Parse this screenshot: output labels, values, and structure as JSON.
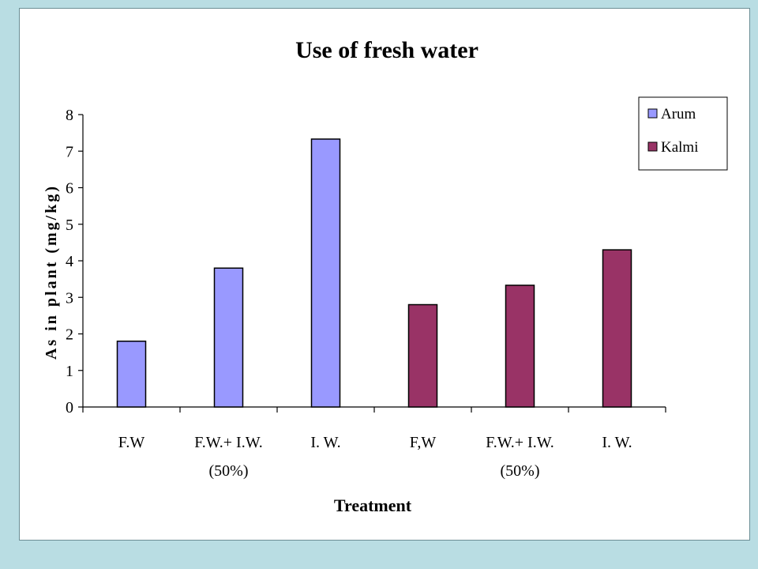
{
  "chart_data": {
    "type": "bar",
    "title": "Use of fresh water",
    "xlabel": "Treatment",
    "ylabel": "As in plant (mg/kg)",
    "ylim": [
      0,
      8
    ],
    "yticks": [
      "0",
      "1",
      "2",
      "3",
      "4",
      "5",
      "6",
      "7",
      "8"
    ],
    "grid": false,
    "legend_position": "top-right",
    "categories": [
      [
        "F.W"
      ],
      [
        "F.W.+ I.W.",
        "(50%)"
      ],
      [
        "I. W."
      ],
      [
        "F,W"
      ],
      [
        "F.W.+ I.W.",
        "(50%)"
      ],
      [
        "I. W."
      ]
    ],
    "series": [
      {
        "name": "Arum",
        "color": "#9999ff",
        "values": [
          1.8,
          3.8,
          7.33,
          null,
          null,
          null
        ]
      },
      {
        "name": "Kalmi",
        "color": "#993366",
        "values": [
          null,
          null,
          null,
          2.8,
          3.33,
          4.3
        ]
      }
    ]
  }
}
